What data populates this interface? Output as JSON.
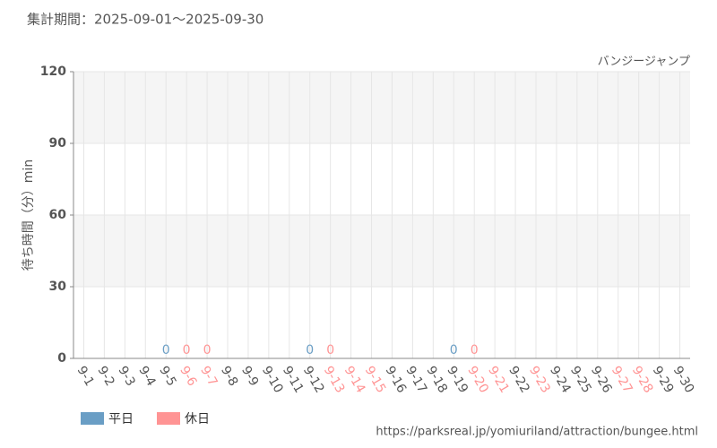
{
  "chart_data": {
    "type": "bar",
    "title": "集計期間：2025-09-01～2025-09-30",
    "subtitle": "バンジージャンプ",
    "y_label": "待ち時間（分）min",
    "source": "https://parksreal.jp/yomiuriland/attraction/bungee.html",
    "categories": [
      "9-1",
      "9-2",
      "9-3",
      "9-4",
      "9-5",
      "9-6",
      "9-7",
      "9-8",
      "9-9",
      "9-10",
      "9-11",
      "9-12",
      "9-13",
      "9-14",
      "9-15",
      "9-16",
      "9-17",
      "9-18",
      "9-19",
      "9-20",
      "9-21",
      "9-22",
      "9-23",
      "9-24",
      "9-25",
      "9-26",
      "9-27",
      "9-28",
      "9-29",
      "9-30"
    ],
    "category_colors": [
      "#555",
      "#555",
      "#555",
      "#555",
      "#555",
      "#ff9494",
      "#ff9494",
      "#555",
      "#555",
      "#555",
      "#555",
      "#555",
      "#ff9494",
      "#ff9494",
      "#ff9494",
      "#555",
      "#555",
      "#555",
      "#555",
      "#ff9494",
      "#ff9494",
      "#555",
      "#ff9494",
      "#555",
      "#555",
      "#555",
      "#ff9494",
      "#ff9494",
      "#555",
      "#555"
    ],
    "series": [
      {
        "name": "平日",
        "color": "#6a9ec5",
        "values": [
          null,
          null,
          null,
          null,
          0,
          null,
          null,
          null,
          null,
          null,
          null,
          0,
          null,
          null,
          null,
          null,
          null,
          null,
          0,
          null,
          null,
          null,
          null,
          null,
          null,
          null,
          null,
          null,
          null,
          null
        ]
      },
      {
        "name": "休日",
        "color": "#ff9494",
        "values": [
          null,
          null,
          null,
          null,
          null,
          0,
          0,
          null,
          null,
          null,
          null,
          null,
          0,
          null,
          null,
          null,
          null,
          null,
          null,
          0,
          null,
          null,
          null,
          null,
          null,
          null,
          null,
          null,
          null,
          null
        ]
      }
    ],
    "ylim": [
      0,
      120
    ],
    "yticks": [
      0,
      30,
      60,
      90,
      120
    ],
    "grid": true
  }
}
